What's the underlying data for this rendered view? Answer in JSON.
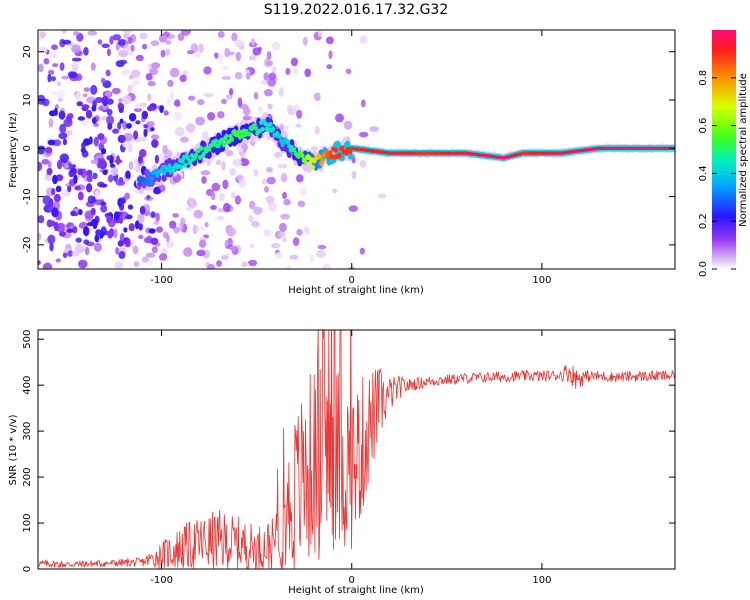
{
  "title": "S119.2022.016.17.32.G32",
  "chart_data": [
    {
      "type": "heatmap",
      "xlabel": "Height of straight line (km)",
      "ylabel": "Frequency (Hz)",
      "xlim": [
        -165,
        170
      ],
      "ylim": [
        -25,
        24.5
      ],
      "xticks": [
        -100,
        0,
        100
      ],
      "xtick_labels": [
        "-100",
        "0",
        "100"
      ],
      "yticks": [
        -20,
        -10,
        0,
        10,
        20
      ],
      "ytick_labels": [
        "-20",
        "-10",
        "0",
        "10",
        "20"
      ],
      "colorbar": {
        "label": "Normalized spectral amplitude",
        "range": [
          0,
          1
        ],
        "ticks": [
          0.0,
          0.2,
          0.4,
          0.6,
          0.8
        ],
        "tick_labels": [
          "0.0",
          "0.2",
          "0.4",
          "0.6",
          "0.8"
        ]
      },
      "ridge": {
        "x": [
          -110,
          -100,
          -90,
          -80,
          -70,
          -60,
          -50,
          -45,
          -40,
          -35,
          -30,
          -20,
          -10,
          0,
          20,
          40,
          60,
          80,
          90,
          110,
          130,
          150,
          170
        ],
        "y": [
          -7,
          -5,
          -3,
          -1,
          1,
          3,
          4,
          5,
          3,
          1,
          -1,
          -3,
          -1,
          0,
          -1,
          -1,
          -1,
          -2,
          -1,
          -1,
          0,
          0,
          0
        ],
        "amplitude": [
          0.3,
          0.4,
          0.45,
          0.5,
          0.5,
          0.55,
          0.5,
          0.45,
          0.45,
          0.4,
          0.5,
          0.7,
          0.9,
          0.9,
          0.95,
          0.9,
          0.95,
          1.0,
          0.9,
          0.95,
          1.0,
          1.0,
          1.0
        ]
      },
      "grid": false
    },
    {
      "type": "line",
      "xlabel": "Height of straight line (km)",
      "ylabel": "SNR (10 * v/v)",
      "xlim": [
        -165,
        170
      ],
      "ylim": [
        0,
        520
      ],
      "xticks": [
        -100,
        0,
        100
      ],
      "xtick_labels": [
        "-100",
        "0",
        "100"
      ],
      "yticks": [
        0,
        100,
        200,
        300,
        400,
        500
      ],
      "ytick_labels": [
        "0",
        "100",
        "200",
        "300",
        "400",
        "500"
      ],
      "line_color": "#ee3333",
      "series": [
        {
          "x": [
            -165,
            -150,
            -130,
            -110,
            -100,
            -90,
            -80,
            -70,
            -60,
            -50,
            -40,
            -35,
            -30,
            -25,
            -20,
            -15,
            -10,
            -5,
            0,
            5,
            10,
            15,
            20,
            25,
            30,
            40,
            50,
            60,
            70,
            80,
            90,
            100,
            110,
            114,
            118,
            125,
            140,
            160,
            170
          ],
          "values": [
            12,
            10,
            12,
            15,
            30,
            45,
            55,
            60,
            55,
            45,
            55,
            110,
            160,
            200,
            230,
            250,
            250,
            230,
            220,
            260,
            320,
            360,
            380,
            395,
            400,
            408,
            412,
            415,
            417,
            418,
            420,
            420,
            422,
            430,
            415,
            420,
            418,
            420,
            420
          ],
          "band": [
            8,
            8,
            8,
            10,
            30,
            50,
            60,
            70,
            60,
            50,
            60,
            120,
            180,
            200,
            220,
            230,
            220,
            200,
            180,
            160,
            120,
            80,
            40,
            25,
            15,
            12,
            12,
            12,
            12,
            12,
            12,
            12,
            12,
            25,
            25,
            12,
            12,
            12,
            12
          ]
        }
      ]
    }
  ]
}
